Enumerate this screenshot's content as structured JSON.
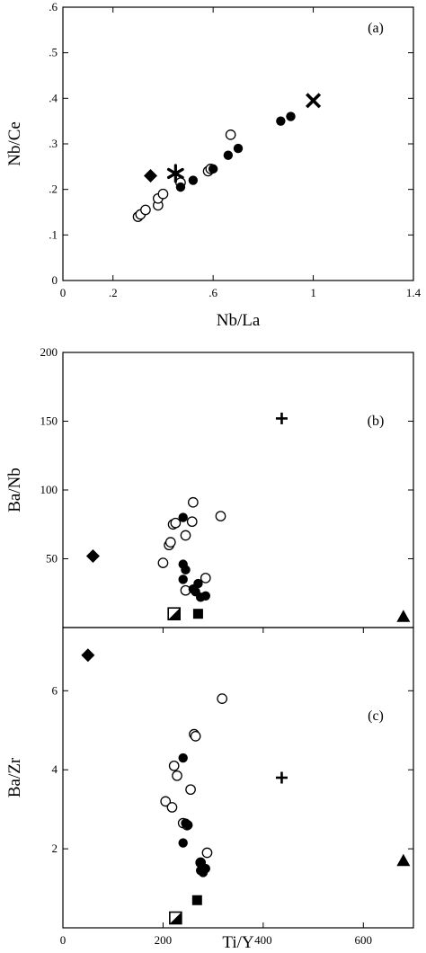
{
  "chart_data": [
    {
      "type": "scatter",
      "panel_label": "(a)",
      "xlabel": "Nb/La",
      "ylabel": "Nb/Ce",
      "xlim": [
        0,
        1.4
      ],
      "ylim": [
        0,
        0.6
      ],
      "xticks": [
        0,
        0.2,
        0.6,
        1,
        1.4
      ],
      "xtick_labels": [
        "0",
        ".2",
        ".6",
        "1",
        "1.4"
      ],
      "yticks": [
        0,
        0.1,
        0.2,
        0.3,
        0.4,
        0.5,
        0.6
      ],
      "ytick_labels": [
        "0",
        ".1",
        ".2",
        ".3",
        ".4",
        ".5",
        ".6"
      ],
      "grid": false,
      "series": [
        {
          "marker": "open-circle",
          "points": [
            [
              0.3,
              0.14
            ],
            [
              0.31,
              0.145
            ],
            [
              0.33,
              0.155
            ],
            [
              0.38,
              0.165
            ],
            [
              0.38,
              0.18
            ],
            [
              0.4,
              0.19
            ],
            [
              0.47,
              0.215
            ],
            [
              0.58,
              0.24
            ],
            [
              0.59,
              0.245
            ],
            [
              0.67,
              0.32
            ]
          ]
        },
        {
          "marker": "filled-circle",
          "points": [
            [
              0.47,
              0.205
            ],
            [
              0.52,
              0.22
            ],
            [
              0.6,
              0.245
            ],
            [
              0.66,
              0.275
            ],
            [
              0.7,
              0.29
            ],
            [
              0.87,
              0.35
            ],
            [
              0.91,
              0.36
            ]
          ]
        },
        {
          "marker": "filled-diamond",
          "points": [
            [
              0.35,
              0.23
            ]
          ]
        },
        {
          "marker": "asterisk",
          "points": [
            [
              0.45,
              0.235
            ]
          ]
        },
        {
          "marker": "x-cross",
          "points": [
            [
              1.0,
              0.395
            ]
          ]
        }
      ]
    },
    {
      "type": "scatter",
      "panel_label": "(b)",
      "xlabel": "",
      "ylabel": "Ba/Nb",
      "xlim": [
        0,
        700
      ],
      "ylim": [
        0,
        200
      ],
      "xticks": [],
      "xtick_labels": [],
      "yticks": [
        50,
        100,
        150,
        200
      ],
      "ytick_labels": [
        "50",
        "100",
        "150",
        "200"
      ],
      "grid": false,
      "series": [
        {
          "marker": "open-circle",
          "points": [
            [
              200,
              47
            ],
            [
              212,
              60
            ],
            [
              215,
              62
            ],
            [
              220,
              75
            ],
            [
              225,
              76
            ],
            [
              245,
              67
            ],
            [
              258,
              77
            ],
            [
              260,
              91
            ],
            [
              315,
              81
            ],
            [
              285,
              36
            ],
            [
              245,
              27
            ]
          ]
        },
        {
          "marker": "filled-circle",
          "points": [
            [
              240,
              80
            ],
            [
              240,
              46
            ],
            [
              245,
              42
            ],
            [
              240,
              35
            ],
            [
              270,
              32
            ],
            [
              265,
              26
            ],
            [
              275,
              22
            ],
            [
              285,
              23
            ],
            [
              260,
              28
            ]
          ]
        },
        {
          "marker": "filled-diamond",
          "points": [
            [
              60,
              52
            ]
          ]
        },
        {
          "marker": "plus",
          "points": [
            [
              437,
              152
            ]
          ]
        },
        {
          "marker": "filled-triangle",
          "points": [
            [
              680,
              8
            ]
          ]
        },
        {
          "marker": "half-square",
          "points": [
            [
              222,
              10
            ]
          ]
        },
        {
          "marker": "filled-square",
          "points": [
            [
              270,
              10
            ]
          ]
        }
      ]
    },
    {
      "type": "scatter",
      "panel_label": "(c)",
      "xlabel": "Ti/Y",
      "ylabel": "Ba/Zr",
      "xlim": [
        0,
        700
      ],
      "ylim": [
        0,
        7.6
      ],
      "xticks": [
        0,
        200,
        400,
        600
      ],
      "xtick_labels": [
        "0",
        "200",
        "400",
        "600"
      ],
      "yticks": [
        2,
        4,
        6
      ],
      "ytick_labels": [
        "2",
        "4",
        "6"
      ],
      "grid": false,
      "series": [
        {
          "marker": "open-circle",
          "points": [
            [
              205,
              3.2
            ],
            [
              218,
              3.05
            ],
            [
              222,
              4.1
            ],
            [
              228,
              3.85
            ],
            [
              240,
              2.65
            ],
            [
              248,
              2.6
            ],
            [
              255,
              3.5
            ],
            [
              262,
              4.9
            ],
            [
              265,
              4.85
            ],
            [
              318,
              5.8
            ],
            [
              288,
              1.9
            ],
            [
              275,
              1.65
            ]
          ]
        },
        {
          "marker": "filled-circle",
          "points": [
            [
              240,
              4.3
            ],
            [
              240,
              2.15
            ],
            [
              245,
              2.65
            ],
            [
              250,
              2.6
            ],
            [
              275,
              1.45
            ],
            [
              275,
              1.65
            ],
            [
              285,
              1.5
            ],
            [
              280,
              1.4
            ]
          ]
        },
        {
          "marker": "filled-diamond",
          "points": [
            [
              50,
              6.9
            ]
          ]
        },
        {
          "marker": "plus",
          "points": [
            [
              437,
              3.8
            ]
          ]
        },
        {
          "marker": "filled-triangle",
          "points": [
            [
              680,
              1.7
            ]
          ]
        },
        {
          "marker": "half-square",
          "points": [
            [
              225,
              0.25
            ]
          ]
        },
        {
          "marker": "filled-square",
          "points": [
            [
              268,
              0.7
            ]
          ]
        }
      ]
    }
  ]
}
